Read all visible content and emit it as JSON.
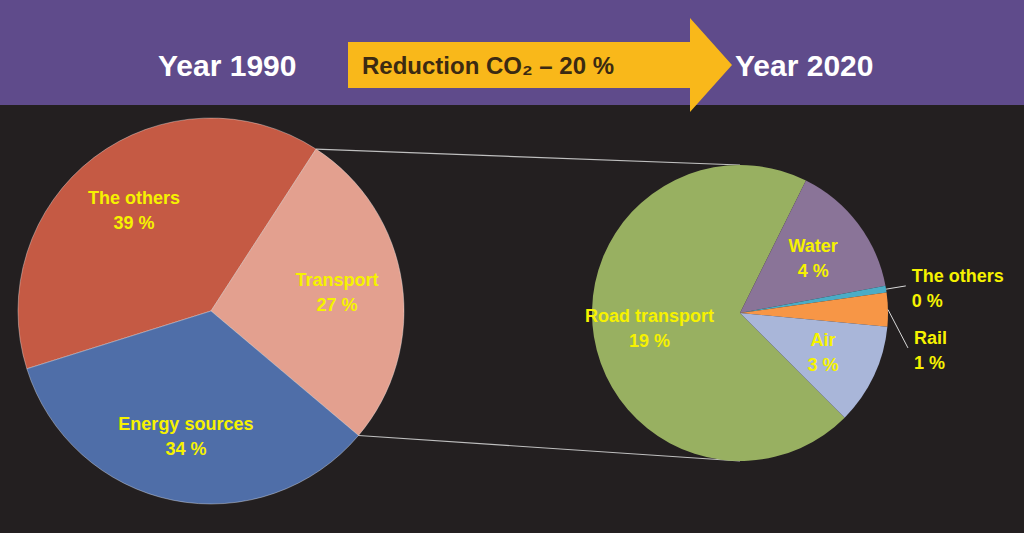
{
  "chart_data": [
    {
      "type": "pie",
      "title": "Year 1990",
      "categories": [
        "The others",
        "Transport",
        "Energy sources"
      ],
      "values": [
        39,
        27,
        34
      ],
      "value_labels": [
        "39 %",
        "27 %",
        "34 %"
      ],
      "colors": [
        "#c55a44",
        "#e3a08f",
        "#4f6ea8"
      ],
      "data_labels": true
    },
    {
      "type": "pie",
      "title": "Year 2020",
      "categories": [
        "Road transport",
        "Water",
        "The others",
        "Rail",
        "Air"
      ],
      "values": [
        19,
        4,
        0.2,
        1,
        3
      ],
      "value_labels": [
        "19 %",
        "4 %",
        "0 %",
        "1 %",
        "3 %"
      ],
      "colors": [
        "#98b061",
        "#8a7498",
        "#4bacc6",
        "#f79646",
        "#a9b6d9"
      ],
      "data_labels": true
    }
  ],
  "annotation": "Reduction CO₂ – 20 %"
}
